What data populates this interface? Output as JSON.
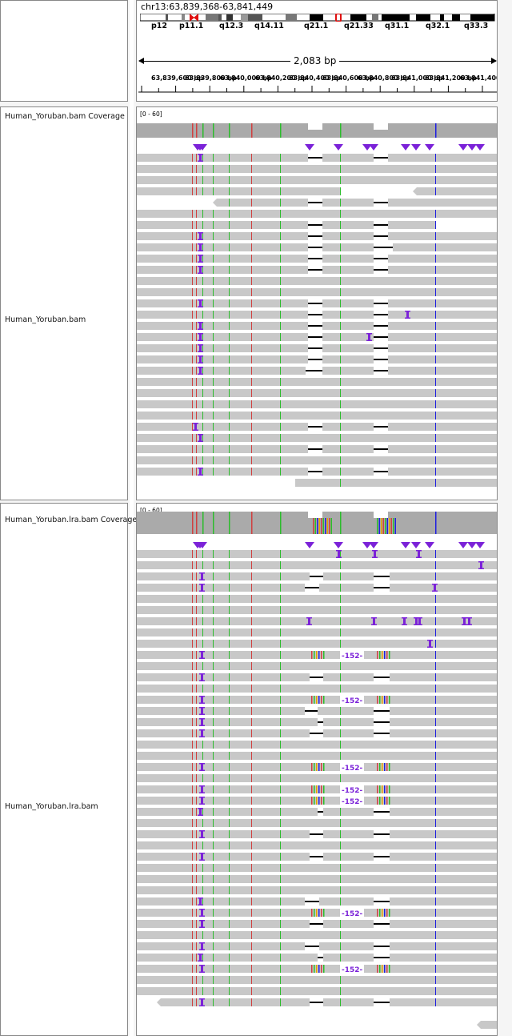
{
  "header": {
    "locus": "chr13:63,839,368-63,841,449",
    "span_label": "2,083 bp",
    "cytobands": [
      "p12",
      "p11.1",
      "q12.3",
      "q14.11",
      "q21.1",
      "q21.33",
      "q31.1",
      "q32.1",
      "q33.3"
    ],
    "tick_labels": [
      "63,839,600 bp",
      "63,839,800 bp",
      "63,840,000 bp",
      "63,840,200 bp",
      "63,840,400 bp",
      "63,840,600 bp",
      "63,840,800 bp",
      "63,841,000 bp",
      "63,841,200 bp",
      "63,841,400 bp"
    ]
  },
  "tracks": [
    {
      "coverage_name": "Human_Yoruban.bam Coverage",
      "alignment_name": "Human_Yoruban.bam",
      "range": "[0 - 60]"
    },
    {
      "coverage_name": "Human_Yoruban.lra.bam Coverage",
      "alignment_name": "Human_Yoruban.lra.bam",
      "range": "[0 - 60]"
    }
  ],
  "insertion_label": "152",
  "colors": {
    "read": "#c8c8c8",
    "insertion": "#7b22d8",
    "mismatch_red": "#d04040",
    "mismatch_green": "#2cbc2c",
    "mismatch_blue": "#2020e0",
    "centromere": "#e01010"
  }
}
